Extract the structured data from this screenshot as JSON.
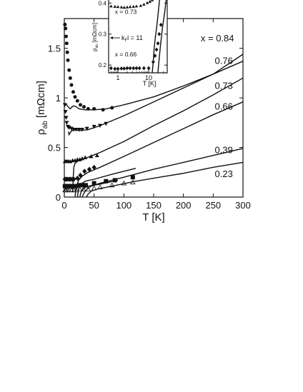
{
  "chart_data": [
    {
      "type": "scatter",
      "title": "",
      "xlabel": "T [K]",
      "ylabel_main": "ρ",
      "ylabel_sub": "ab",
      "ylabel_unit": " [mΩcm]",
      "xlim": [
        0,
        300
      ],
      "ylim": [
        0,
        1.8
      ],
      "x_ticks": [
        0,
        50,
        100,
        150,
        200,
        250,
        300
      ],
      "x_tick_labels": [
        "0",
        "50",
        "100",
        "150",
        "200",
        "250",
        "300"
      ],
      "y_ticks": [
        0,
        0.5,
        1,
        1.5
      ],
      "y_tick_labels": [
        "0",
        "0.5",
        "1",
        "1.5"
      ],
      "series": [
        {
          "name": "x = 0.84",
          "label_at": [
            285,
            1.6
          ],
          "marker": "circle",
          "points": [
            [
              1,
              1.74
            ],
            [
              2,
              1.7
            ],
            [
              3,
              1.62
            ],
            [
              4,
              1.55
            ],
            [
              5,
              1.46
            ],
            [
              6,
              1.38
            ],
            [
              8,
              1.28
            ],
            [
              10,
              1.2
            ],
            [
              12,
              1.13
            ],
            [
              15,
              1.06
            ],
            [
              18,
              1.01
            ],
            [
              22,
              0.97
            ],
            [
              27,
              0.93
            ],
            [
              33,
              0.91
            ],
            [
              40,
              0.89
            ],
            [
              50,
              0.89
            ],
            [
              65,
              0.88
            ],
            [
              80,
              0.9
            ]
          ],
          "curve": [
            [
              3,
              0.94
            ],
            [
              5,
              0.92
            ],
            [
              8,
              0.9
            ],
            [
              10,
              0.89
            ],
            [
              13,
              0.91
            ],
            [
              16,
              0.92
            ],
            [
              20,
              0.91
            ],
            [
              25,
              0.89
            ],
            [
              35,
              0.88
            ],
            [
              50,
              0.88
            ],
            [
              70,
              0.89
            ],
            [
              100,
              0.93
            ],
            [
              150,
              1.01
            ],
            [
              200,
              1.12
            ],
            [
              250,
              1.24
            ],
            [
              300,
              1.37
            ]
          ]
        },
        {
          "name": "0.76",
          "label_at": [
            283,
            1.37
          ],
          "marker": "triangle-down",
          "points": [
            [
              1,
              0.93
            ],
            [
              2,
              0.86
            ],
            [
              3,
              0.8
            ],
            [
              4,
              0.75
            ],
            [
              6,
              0.71
            ],
            [
              8,
              0.7
            ],
            [
              12,
              0.69
            ],
            [
              16,
              0.68
            ],
            [
              20,
              0.68
            ],
            [
              25,
              0.68
            ],
            [
              30,
              0.68
            ],
            [
              38,
              0.69
            ],
            [
              50,
              0.71
            ],
            [
              60,
              0.72
            ],
            [
              70,
              0.74
            ]
          ],
          "curve": [
            [
              7,
              0.66
            ],
            [
              8,
              0.63
            ],
            [
              10,
              0.65
            ],
            [
              13,
              0.67
            ],
            [
              17,
              0.68
            ],
            [
              25,
              0.67
            ],
            [
              40,
              0.68
            ],
            [
              60,
              0.72
            ],
            [
              100,
              0.82
            ],
            [
              150,
              0.96
            ],
            [
              200,
              1.1
            ],
            [
              250,
              1.24
            ],
            [
              300,
              1.44
            ]
          ]
        },
        {
          "name": "0.73",
          "label_at": [
            283,
            1.12
          ],
          "marker": "triangle-up",
          "points": [
            [
              1,
              0.36
            ],
            [
              3,
              0.36
            ],
            [
              5,
              0.36
            ],
            [
              7,
              0.36
            ],
            [
              10,
              0.36
            ],
            [
              14,
              0.37
            ],
            [
              18,
              0.37
            ],
            [
              22,
              0.38
            ],
            [
              26,
              0.38
            ],
            [
              30,
              0.39
            ],
            [
              35,
              0.4
            ],
            [
              45,
              0.41
            ],
            [
              55,
              0.42
            ]
          ],
          "curve": [
            [
              14,
              0.05
            ],
            [
              15,
              0.2
            ],
            [
              16,
              0.3
            ],
            [
              18,
              0.34
            ],
            [
              22,
              0.36
            ],
            [
              35,
              0.39
            ],
            [
              60,
              0.45
            ],
            [
              100,
              0.56
            ],
            [
              150,
              0.72
            ],
            [
              200,
              0.87
            ],
            [
              250,
              1.03
            ],
            [
              300,
              1.2
            ]
          ]
        },
        {
          "name": "0.66",
          "label_at": [
            283,
            0.91
          ],
          "marker": "diamond",
          "points": [
            [
              1,
              0.18
            ],
            [
              3,
              0.18
            ],
            [
              5,
              0.18
            ],
            [
              8,
              0.18
            ],
            [
              10,
              0.18
            ],
            [
              13,
              0.18
            ],
            [
              16,
              0.18
            ],
            [
              22,
              0.19
            ],
            [
              27,
              0.22
            ],
            [
              34,
              0.26
            ],
            [
              42,
              0.28
            ],
            [
              50,
              0.3
            ]
          ],
          "curve": [
            [
              18,
              0.0
            ],
            [
              19,
              0.05
            ],
            [
              21,
              0.12
            ],
            [
              24,
              0.17
            ],
            [
              30,
              0.21
            ],
            [
              40,
              0.25
            ],
            [
              60,
              0.3
            ],
            [
              100,
              0.41
            ],
            [
              150,
              0.55
            ],
            [
              200,
              0.69
            ],
            [
              250,
              0.83
            ],
            [
              300,
              0.96
            ]
          ]
        },
        {
          "name": "0.39",
          "label_at": [
            283,
            0.47
          ],
          "marker": "square",
          "points": [
            [
              1,
              0.11
            ],
            [
              3,
              0.11
            ],
            [
              5,
              0.11
            ],
            [
              7,
              0.11
            ],
            [
              10,
              0.11
            ],
            [
              13,
              0.11
            ],
            [
              16,
              0.11
            ],
            [
              20,
              0.11
            ],
            [
              25,
              0.12
            ],
            [
              30,
              0.12
            ],
            [
              36,
              0.12
            ],
            [
              50,
              0.14
            ],
            [
              70,
              0.16
            ],
            [
              85,
              0.17
            ],
            [
              115,
              0.2
            ]
          ],
          "curve": [
            [
              30,
              0.0
            ],
            [
              33,
              0.04
            ],
            [
              38,
              0.08
            ],
            [
              45,
              0.11
            ],
            [
              60,
              0.14
            ],
            [
              100,
              0.2
            ],
            [
              150,
              0.28
            ],
            [
              200,
              0.35
            ],
            [
              250,
              0.42
            ],
            [
              300,
              0.49
            ]
          ]
        },
        {
          "name": "0.23",
          "label_at": [
            283,
            0.23
          ],
          "marker": "triangle-up-open",
          "points": [
            [
              1,
              0.07
            ],
            [
              3,
              0.07
            ],
            [
              5,
              0.07
            ],
            [
              8,
              0.07
            ],
            [
              12,
              0.07
            ],
            [
              16,
              0.07
            ],
            [
              20,
              0.07
            ],
            [
              26,
              0.08
            ],
            [
              32,
              0.08
            ],
            [
              40,
              0.08
            ],
            [
              50,
              0.09
            ],
            [
              60,
              0.1
            ],
            [
              80,
              0.12
            ],
            [
              100,
              0.14
            ],
            [
              115,
              0.15
            ]
          ],
          "curve": [
            [
              37,
              0.0
            ],
            [
              40,
              0.03
            ],
            [
              45,
              0.06
            ],
            [
              55,
              0.08
            ],
            [
              80,
              0.11
            ],
            [
              120,
              0.16
            ],
            [
              160,
              0.2
            ],
            [
              200,
              0.24
            ],
            [
              250,
              0.3
            ],
            [
              300,
              0.35
            ]
          ]
        }
      ],
      "extra_curves": [
        [
          [
            22,
            0.0
          ],
          [
            24,
            0.08
          ],
          [
            28,
            0.13
          ],
          [
            35,
            0.16
          ],
          [
            50,
            0.18
          ],
          [
            80,
            0.23
          ],
          [
            120,
            0.29
          ]
        ],
        [
          [
            26,
            0.0
          ],
          [
            28,
            0.05
          ],
          [
            33,
            0.09
          ],
          [
            40,
            0.11
          ],
          [
            60,
            0.13
          ],
          [
            90,
            0.17
          ]
        ]
      ]
    },
    {
      "type": "scatter",
      "xlabel": "T [K]",
      "ylabel_main": "ρ",
      "ylabel_sub": "ab",
      "ylabel_unit": " [mΩcm]",
      "x_scale": "log",
      "xlim": [
        0.5,
        40
      ],
      "ylim": [
        0.175,
        0.41
      ],
      "x_tick_labels": [
        "1",
        "10"
      ],
      "y_tick_labels": [
        "0.2",
        "0.3",
        "0.4"
      ],
      "y_ticks": [
        0.2,
        0.3,
        0.4
      ],
      "annotation": "k",
      "annotation_sub": "F",
      "annotation_rest": "l = 11",
      "annotation_at": [
        0.62,
        0.315
      ],
      "series": [
        {
          "name": "x = 0.73",
          "label_at": [
            0.8,
            0.365
          ],
          "marker": "triangle-up",
          "points": [
            [
              0.6,
              0.39
            ],
            [
              0.8,
              0.389
            ],
            [
              1.0,
              0.388
            ],
            [
              1.3,
              0.387
            ],
            [
              1.6,
              0.386
            ],
            [
              2.0,
              0.387
            ],
            [
              2.5,
              0.388
            ],
            [
              3.2,
              0.389
            ],
            [
              4.0,
              0.39
            ],
            [
              5.5,
              0.392
            ],
            [
              7,
              0.396
            ],
            [
              9,
              0.401
            ],
            [
              11,
              0.405
            ],
            [
              13,
              0.41
            ]
          ]
        },
        {
          "name": "x = 0.66",
          "label_at": [
            0.8,
            0.228
          ],
          "marker": "diamond",
          "points": [
            [
              0.6,
              0.19
            ],
            [
              0.8,
              0.188
            ],
            [
              1.0,
              0.188
            ],
            [
              1.3,
              0.189
            ],
            [
              1.6,
              0.189
            ],
            [
              2.0,
              0.19
            ],
            [
              2.5,
              0.19
            ],
            [
              3.2,
              0.19
            ],
            [
              4.0,
              0.19
            ],
            [
              5,
              0.19
            ],
            [
              7,
              0.19
            ],
            [
              10,
              0.19
            ],
            [
              14,
              0.21
            ],
            [
              16,
              0.23
            ],
            [
              18,
              0.25
            ],
            [
              20,
              0.27
            ],
            [
              22,
              0.3
            ],
            [
              25,
              0.33
            ]
          ]
        }
      ],
      "curves": [
        [
          [
            13,
            0.175
          ],
          [
            14,
            0.21
          ],
          [
            15,
            0.25
          ],
          [
            16.5,
            0.29
          ],
          [
            18,
            0.32
          ],
          [
            19.5,
            0.35
          ],
          [
            21,
            0.38
          ],
          [
            22.5,
            0.41
          ]
        ],
        [
          [
            20,
            0.175
          ],
          [
            21,
            0.2
          ],
          [
            22.5,
            0.23
          ],
          [
            24,
            0.26
          ],
          [
            26,
            0.29
          ],
          [
            28,
            0.32
          ],
          [
            31,
            0.35
          ],
          [
            34,
            0.38
          ],
          [
            37,
            0.41
          ]
        ]
      ]
    }
  ]
}
